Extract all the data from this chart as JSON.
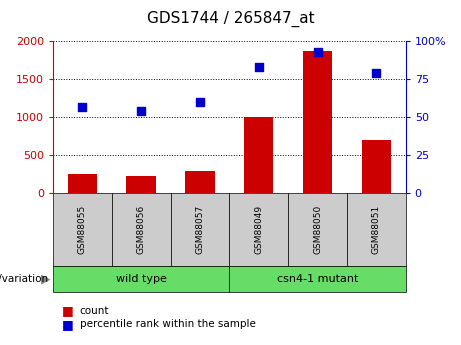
{
  "title": "GDS1744 / 265847_at",
  "samples": [
    "GSM88055",
    "GSM88056",
    "GSM88057",
    "GSM88049",
    "GSM88050",
    "GSM88051"
  ],
  "counts": [
    250,
    230,
    290,
    1000,
    1870,
    700
  ],
  "percentiles": [
    57,
    54,
    60,
    83,
    93,
    79
  ],
  "groups": [
    {
      "label": "wild type",
      "n": 3
    },
    {
      "label": "csn4-1 mutant",
      "n": 3
    }
  ],
  "left_ylim": [
    0,
    2000
  ],
  "right_ylim": [
    0,
    100
  ],
  "left_yticks": [
    0,
    500,
    1000,
    1500,
    2000
  ],
  "right_yticks": [
    0,
    25,
    50,
    75,
    100
  ],
  "right_yticklabels": [
    "0",
    "25",
    "50",
    "75",
    "100%"
  ],
  "bar_color": "#cc0000",
  "dot_color": "#0000cc",
  "legend_count_label": "count",
  "legend_pct_label": "percentile rank within the sample",
  "tick_bg_color": "#cccccc",
  "group_bg_color": "#66dd66",
  "title_fontsize": 11,
  "axis_left_color": "#cc0000",
  "axis_right_color": "#0000cc",
  "dot_size": 30
}
